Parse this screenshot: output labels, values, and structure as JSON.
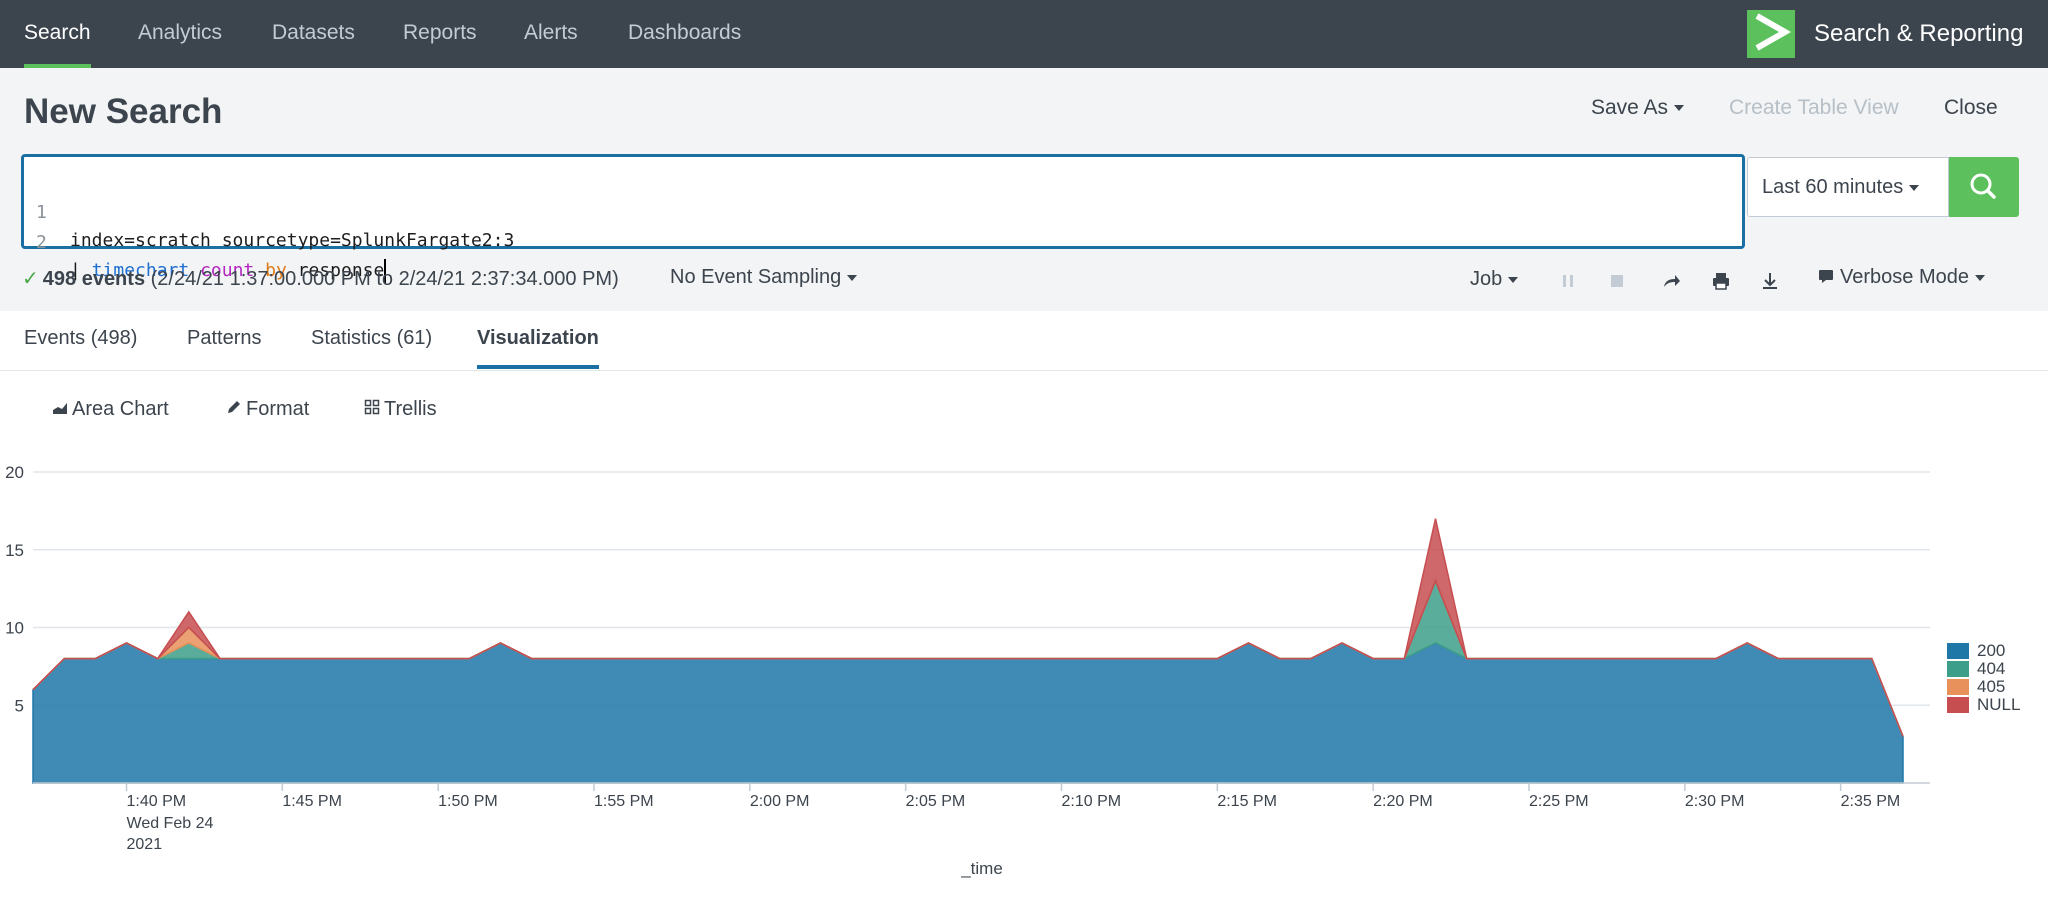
{
  "nav": {
    "items": [
      "Search",
      "Analytics",
      "Datasets",
      "Reports",
      "Alerts",
      "Dashboards"
    ],
    "active_index": 0,
    "app_title": "Search & Reporting",
    "app_logo_icon": "splunk-chevron-logo"
  },
  "header": {
    "title": "New Search",
    "save_as": "Save As",
    "create_table_view": "Create Table View",
    "close": "Close"
  },
  "editor": {
    "lines": [
      {
        "num": "1",
        "text": "index=scratch sourcetype=SplunkFargate2:3"
      },
      {
        "num": "2",
        "pipe": "| ",
        "cmd": "timechart",
        "fn": "count",
        "kw": "by",
        "arg": "response"
      }
    ]
  },
  "time_picker": {
    "label": "Last 60 minutes"
  },
  "search_button_icon": "magnifier-icon",
  "status": {
    "events": "498 events",
    "range": "(2/24/21 1:37:00.000 PM to 2/24/21 2:37:34.000 PM)",
    "sampling": "No Event Sampling",
    "job": "Job",
    "mode": "Verbose Mode"
  },
  "tabs": [
    "Events (498)",
    "Patterns",
    "Statistics (61)",
    "Visualization"
  ],
  "active_tab": 3,
  "viz_toolbar": {
    "chart_type": "Area Chart",
    "format": "Format",
    "trellis": "Trellis"
  },
  "colors": {
    "accent": "#5cc05c",
    "focus": "#1a6fa3",
    "nav": "#3c444d"
  },
  "chart_data": {
    "type": "area",
    "stacked": true,
    "xlabel": "_time",
    "ylabel": "",
    "ylim": [
      0,
      20
    ],
    "yticks": [
      5,
      10,
      15,
      20
    ],
    "x_start": "1:37 PM",
    "x_end": "2:37 PM",
    "x_minutes": [
      37,
      38,
      39,
      40,
      41,
      42,
      43,
      44,
      45,
      46,
      47,
      48,
      49,
      50,
      51,
      52,
      53,
      54,
      55,
      56,
      57,
      58,
      59,
      60,
      61,
      62,
      63,
      64,
      65,
      66,
      67,
      68,
      69,
      70,
      71,
      72,
      73,
      74,
      75,
      76,
      77,
      78,
      79,
      80,
      81,
      82,
      83,
      84,
      85,
      86,
      87,
      88,
      89,
      90,
      91,
      92,
      93,
      94,
      95,
      96,
      97
    ],
    "xticks": [
      {
        "minute": 40,
        "label": "1:40 PM",
        "sub": [
          "Wed Feb 24",
          "2021"
        ]
      },
      {
        "minute": 45,
        "label": "1:45 PM"
      },
      {
        "minute": 50,
        "label": "1:50 PM"
      },
      {
        "minute": 55,
        "label": "1:55 PM"
      },
      {
        "minute": 60,
        "label": "2:00 PM"
      },
      {
        "minute": 65,
        "label": "2:05 PM"
      },
      {
        "minute": 70,
        "label": "2:10 PM"
      },
      {
        "minute": 75,
        "label": "2:15 PM"
      },
      {
        "minute": 80,
        "label": "2:20 PM"
      },
      {
        "minute": 85,
        "label": "2:25 PM"
      },
      {
        "minute": 90,
        "label": "2:30 PM"
      },
      {
        "minute": 95,
        "label": "2:35 PM"
      }
    ],
    "series": [
      {
        "name": "200",
        "color": "#1f77a8",
        "values": [
          6,
          8,
          8,
          9,
          8,
          8,
          8,
          8,
          8,
          8,
          8,
          8,
          8,
          8,
          8,
          9,
          8,
          8,
          8,
          8,
          8,
          8,
          8,
          8,
          8,
          8,
          8,
          8,
          8,
          8,
          8,
          8,
          8,
          8,
          8,
          8,
          8,
          8,
          8,
          9,
          8,
          8,
          9,
          8,
          8,
          9,
          8,
          8,
          8,
          8,
          8,
          8,
          8,
          8,
          8,
          9,
          8,
          8,
          8,
          8,
          3
        ]
      },
      {
        "name": "404",
        "color": "#3d9e8a",
        "values": [
          0,
          0,
          0,
          0,
          0,
          1,
          0,
          0,
          0,
          0,
          0,
          0,
          0,
          0,
          0,
          0,
          0,
          0,
          0,
          0,
          0,
          0,
          0,
          0,
          0,
          0,
          0,
          0,
          0,
          0,
          0,
          0,
          0,
          0,
          0,
          0,
          0,
          0,
          0,
          0,
          0,
          0,
          0,
          0,
          0,
          4,
          0,
          0,
          0,
          0,
          0,
          0,
          0,
          0,
          0,
          0,
          0,
          0,
          0,
          0,
          0
        ]
      },
      {
        "name": "405",
        "color": "#e8915b",
        "values": [
          0,
          0,
          0,
          0,
          0,
          1,
          0,
          0,
          0,
          0,
          0,
          0,
          0,
          0,
          0,
          0,
          0,
          0,
          0,
          0,
          0,
          0,
          0,
          0,
          0,
          0,
          0,
          0,
          0,
          0,
          0,
          0,
          0,
          0,
          0,
          0,
          0,
          0,
          0,
          0,
          0,
          0,
          0,
          0,
          0,
          0,
          0,
          0,
          0,
          0,
          0,
          0,
          0,
          0,
          0,
          0,
          0,
          0,
          0,
          0,
          0
        ]
      },
      {
        "name": "NULL",
        "color": "#c74e50",
        "values": [
          0,
          0,
          0,
          0,
          0,
          1,
          0,
          0,
          0,
          0,
          0,
          0,
          0,
          0,
          0,
          0,
          0,
          0,
          0,
          0,
          0,
          0,
          0,
          0,
          0,
          0,
          0,
          0,
          0,
          0,
          0,
          0,
          0,
          0,
          0,
          0,
          0,
          0,
          0,
          0,
          0,
          0,
          0,
          0,
          0,
          4,
          0,
          0,
          0,
          0,
          0,
          0,
          0,
          0,
          0,
          0,
          0,
          0,
          0,
          0,
          0
        ]
      }
    ],
    "legend_position": "right",
    "grid": true
  }
}
